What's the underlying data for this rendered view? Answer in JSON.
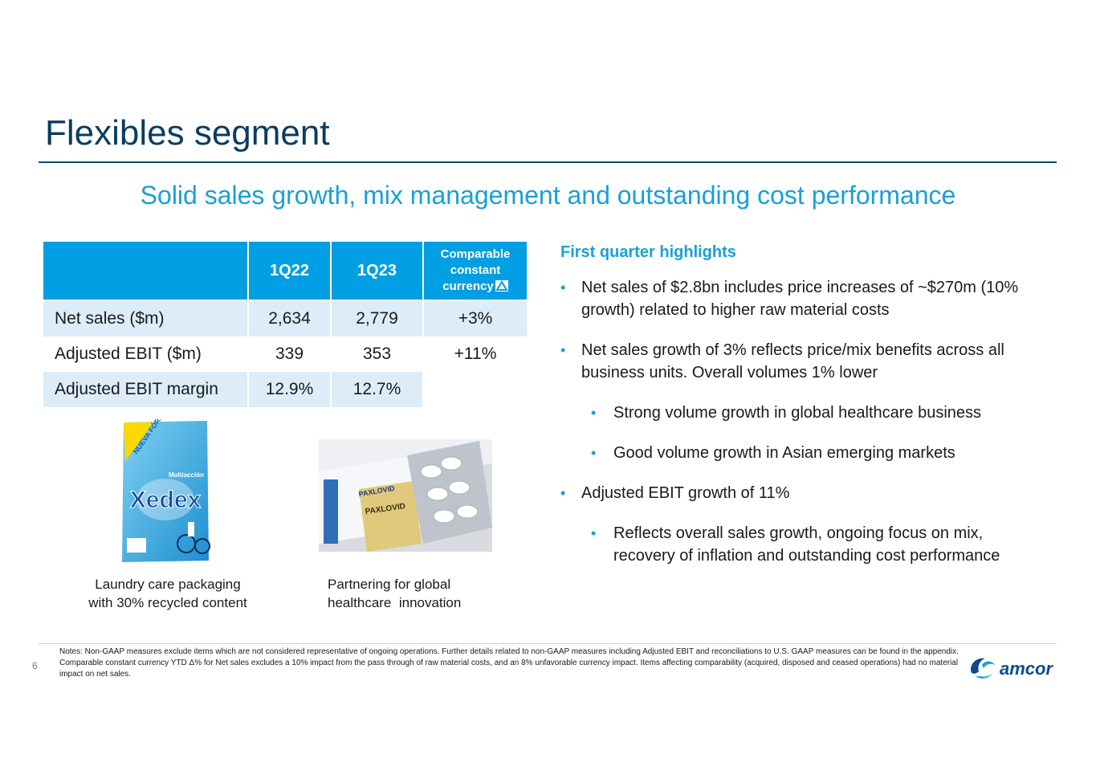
{
  "slide": {
    "title": "Flexibles segment",
    "subtitle": "Solid sales growth, mix management and outstanding cost performance",
    "page_number": "6"
  },
  "table": {
    "headers": [
      "",
      "1Q22",
      "1Q23",
      "Comparable constant currency"
    ],
    "header_ccc_line1": "Comparable",
    "header_ccc_line2": "constant",
    "header_ccc_line3": "currency",
    "rows": [
      {
        "label": "Net sales ($m)",
        "q22": "2,634",
        "q23": "2,779",
        "ccc": "+3%"
      },
      {
        "label": "Adjusted EBIT ($m)",
        "q22": "339",
        "q23": "353",
        "ccc": "+11%"
      },
      {
        "label": "Adjusted EBIT margin",
        "q22": "12.9%",
        "q23": "12.7%",
        "ccc": ""
      }
    ]
  },
  "images": {
    "laundry": {
      "brand": "Xedex",
      "badge": "NUEVA FÓRMULA",
      "tag": "Multiacción",
      "caption": "Laundry care packaging with 30% recycled content"
    },
    "healthcare": {
      "product": "PAXLOVID",
      "caption_line1": "Partnering for global",
      "caption_line2": "healthcare  innovation"
    }
  },
  "highlights": {
    "heading": "First quarter highlights",
    "items": [
      {
        "level": 1,
        "text": "Net sales of $2.8bn includes price increases of ~$270m (10% growth) related to higher raw material costs"
      },
      {
        "level": 1,
        "text": "Net sales growth of 3% reflects price/mix benefits across all business units.  Overall volumes 1% lower"
      },
      {
        "level": 2,
        "text": "Strong volume growth in global healthcare business"
      },
      {
        "level": 2,
        "text": "Good volume growth in Asian emerging markets"
      },
      {
        "level": 1,
        "text": "Adjusted EBIT growth of 11%"
      },
      {
        "level": 2,
        "text": "Reflects overall sales growth, ongoing focus on mix, recovery of inflation and outstanding cost performance"
      }
    ],
    "bullet_char": "•"
  },
  "footer": {
    "notes": "Notes:  Non-GAAP measures exclude items which are not considered representative of ongoing operations.  Further details related to non-GAAP measures including Adjusted EBIT and reconciliations to U.S. GAAP measures can be found in the appendix.  Comparable constant currency YTD Δ% for Net sales excludes a 10% impact from the pass through of raw material costs, and an 8% unfavorable currency impact. Items affecting comparability (acquired, disposed and ceased operations) had no material impact on net sales.",
    "logo_text": "amcor"
  },
  "colors": {
    "title": "#0b3c5d",
    "accent": "#1a9fd8",
    "table_header": "#009fe3",
    "table_shade": "#dcedf9"
  }
}
